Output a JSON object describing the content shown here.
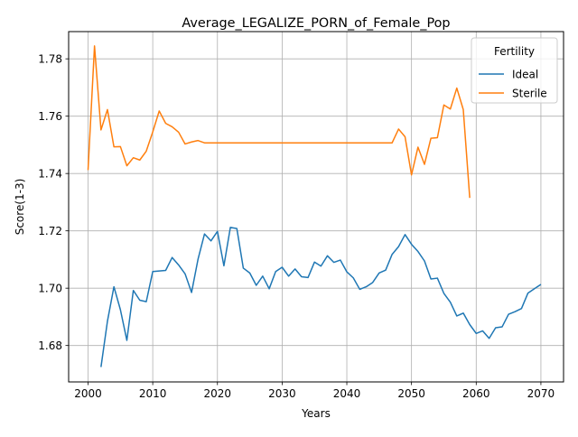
{
  "chart_data": {
    "type": "line",
    "title": "Average_LEGALIZE_PORN_of_Female_Pop",
    "xlabel": "Years",
    "ylabel": "Score(1-3)",
    "xlim": [
      1997,
      2073.5
    ],
    "ylim": [
      1.6673,
      1.7895
    ],
    "xticks": [
      2000,
      2010,
      2020,
      2030,
      2040,
      2050,
      2060,
      2070
    ],
    "xtick_labels": [
      "2000",
      "2010",
      "2020",
      "2030",
      "2040",
      "2050",
      "2060",
      "2070"
    ],
    "yticks": [
      1.68,
      1.7,
      1.72,
      1.74,
      1.76,
      1.78
    ],
    "ytick_labels": [
      "1.68",
      "1.70",
      "1.72",
      "1.74",
      "1.76",
      "1.78"
    ],
    "grid": true,
    "legend": {
      "title": "Fertility",
      "placement": "top-right"
    },
    "series": [
      {
        "name": "Ideal",
        "color": "#1f77b4",
        "x": [
          2002,
          2003,
          2004,
          2005,
          2006,
          2007,
          2008,
          2009,
          2010,
          2011,
          2012,
          2013,
          2014,
          2015,
          2016,
          2017,
          2018,
          2019,
          2020,
          2021,
          2022,
          2023,
          2024,
          2025,
          2026,
          2027,
          2028,
          2029,
          2030,
          2031,
          2032,
          2033,
          2034,
          2035,
          2036,
          2037,
          2038,
          2039,
          2040,
          2041,
          2042,
          2043,
          2044,
          2045,
          2046,
          2047,
          2048,
          2049,
          2050,
          2051,
          2052,
          2053,
          2054,
          2055,
          2056,
          2057,
          2058,
          2059,
          2060,
          2061,
          2062,
          2063,
          2064,
          2065,
          2066,
          2067,
          2068,
          2069,
          2070
        ],
        "values": [
          1.6725,
          1.6885,
          1.7005,
          1.6925,
          1.6818,
          1.6992,
          1.6958,
          1.6953,
          1.7058,
          1.706,
          1.7062,
          1.7107,
          1.7081,
          1.705,
          1.6985,
          1.7101,
          1.7189,
          1.7165,
          1.7198,
          1.7078,
          1.7212,
          1.7208,
          1.707,
          1.7053,
          1.701,
          1.7042,
          1.6998,
          1.7058,
          1.7073,
          1.7042,
          1.7067,
          1.704,
          1.7037,
          1.7091,
          1.7077,
          1.7113,
          1.709,
          1.7098,
          1.7057,
          1.7036,
          1.6996,
          1.7005,
          1.702,
          1.7053,
          1.7063,
          1.7118,
          1.7145,
          1.7187,
          1.7153,
          1.7128,
          1.7095,
          1.7032,
          1.7035,
          1.6982,
          1.6951,
          1.6903,
          1.6913,
          1.6873,
          1.6842,
          1.6851,
          1.6825,
          1.6862,
          1.6865,
          1.6909,
          1.6918,
          1.6929,
          1.6983,
          1.6998,
          1.7013
        ]
      },
      {
        "name": "Sterile",
        "color": "#ff7f0e",
        "x": [
          2000,
          2001,
          2002,
          2003,
          2004,
          2005,
          2006,
          2007,
          2008,
          2009,
          2010,
          2011,
          2012,
          2013,
          2014,
          2015,
          2016,
          2017,
          2018,
          2019,
          2020,
          2021,
          2022,
          2023,
          2024,
          2025,
          2026,
          2027,
          2028,
          2029,
          2030,
          2031,
          2032,
          2033,
          2034,
          2035,
          2036,
          2037,
          2038,
          2039,
          2040,
          2041,
          2042,
          2043,
          2044,
          2045,
          2046,
          2047,
          2048,
          2049,
          2050,
          2051,
          2052,
          2053,
          2054,
          2055,
          2056,
          2057,
          2058,
          2059
        ],
        "values": [
          1.7412,
          1.7845,
          1.7552,
          1.7623,
          1.7493,
          1.7494,
          1.7427,
          1.7455,
          1.7447,
          1.7478,
          1.7545,
          1.7618,
          1.7575,
          1.7563,
          1.7544,
          1.7503,
          1.751,
          1.7515,
          1.7507,
          1.7507,
          1.7507,
          1.7507,
          1.7507,
          1.7507,
          1.7507,
          1.7507,
          1.7507,
          1.7507,
          1.7507,
          1.7507,
          1.7507,
          1.7507,
          1.7507,
          1.7507,
          1.7507,
          1.7507,
          1.7507,
          1.7507,
          1.7507,
          1.7507,
          1.7507,
          1.7507,
          1.7507,
          1.7507,
          1.7507,
          1.7507,
          1.7507,
          1.7507,
          1.7555,
          1.7528,
          1.7395,
          1.7492,
          1.7432,
          1.7523,
          1.7525,
          1.7639,
          1.7625,
          1.7698,
          1.7623,
          1.7315
        ]
      }
    ]
  }
}
